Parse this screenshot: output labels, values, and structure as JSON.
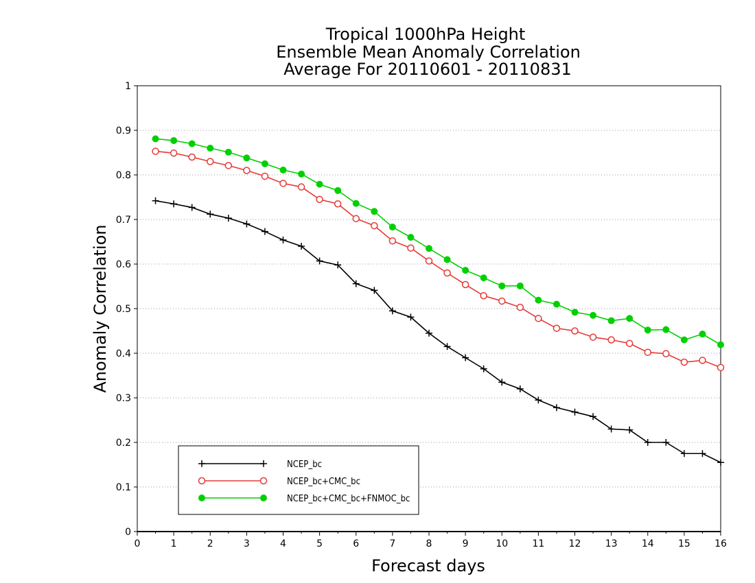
{
  "chart_data": {
    "type": "line",
    "title_lines": [
      "Tropical 1000hPa Height",
      "Ensemble Mean Anomaly Correlation",
      "Average For 20110601 - 20110831"
    ],
    "xlabel": "Forecast days",
    "ylabel": "Anomaly Correlation",
    "xlim": [
      0,
      16
    ],
    "ylim": [
      0,
      1
    ],
    "xticks": [
      "0",
      "1",
      "2",
      "3",
      "4",
      "5",
      "6",
      "7",
      "8",
      "9",
      "10",
      "11",
      "12",
      "13",
      "14",
      "15",
      "16"
    ],
    "yticks": [
      "0",
      "0.1",
      "0.2",
      "0.3",
      "0.4",
      "0.5",
      "0.6",
      "0.7",
      "0.8",
      "0.9",
      "1"
    ],
    "grid": true,
    "legend_position": "bottom-left",
    "x": [
      0.5,
      1,
      1.5,
      2,
      2.5,
      3,
      3.5,
      4,
      4.5,
      5,
      5.5,
      6,
      6.5,
      7,
      7.5,
      8,
      8.5,
      9,
      9.5,
      10,
      10.5,
      11,
      11.5,
      12,
      12.5,
      13,
      13.5,
      14,
      14.5,
      15,
      15.5,
      16
    ],
    "series": [
      {
        "name": "NCEP_bc",
        "color": "#000000",
        "marker": "plus",
        "values": [
          0.742,
          0.735,
          0.727,
          0.712,
          0.703,
          0.69,
          0.673,
          0.654,
          0.64,
          0.607,
          0.598,
          0.556,
          0.541,
          0.495,
          0.481,
          0.445,
          0.415,
          0.39,
          0.365,
          0.335,
          0.32,
          0.295,
          0.278,
          0.268,
          0.258,
          0.23,
          0.228,
          0.2,
          0.2,
          0.175,
          0.175,
          0.155
        ]
      },
      {
        "name": "NCEP_bc+CMC_bc",
        "color": "#e53935",
        "marker": "open-circle",
        "values": [
          0.853,
          0.849,
          0.84,
          0.83,
          0.821,
          0.81,
          0.797,
          0.781,
          0.773,
          0.745,
          0.735,
          0.702,
          0.686,
          0.652,
          0.636,
          0.607,
          0.58,
          0.554,
          0.529,
          0.517,
          0.503,
          0.478,
          0.456,
          0.45,
          0.436,
          0.43,
          0.422,
          0.402,
          0.399,
          0.38,
          0.384,
          0.368
        ]
      },
      {
        "name": "NCEP_bc+CMC_bc+FNMOC_bc",
        "color": "#00d000",
        "marker": "filled-circle",
        "values": [
          0.881,
          0.877,
          0.87,
          0.86,
          0.851,
          0.838,
          0.825,
          0.811,
          0.802,
          0.779,
          0.765,
          0.736,
          0.718,
          0.683,
          0.66,
          0.635,
          0.61,
          0.586,
          0.569,
          0.551,
          0.551,
          0.519,
          0.51,
          0.492,
          0.485,
          0.473,
          0.478,
          0.452,
          0.453,
          0.43,
          0.443,
          0.419
        ]
      }
    ]
  }
}
